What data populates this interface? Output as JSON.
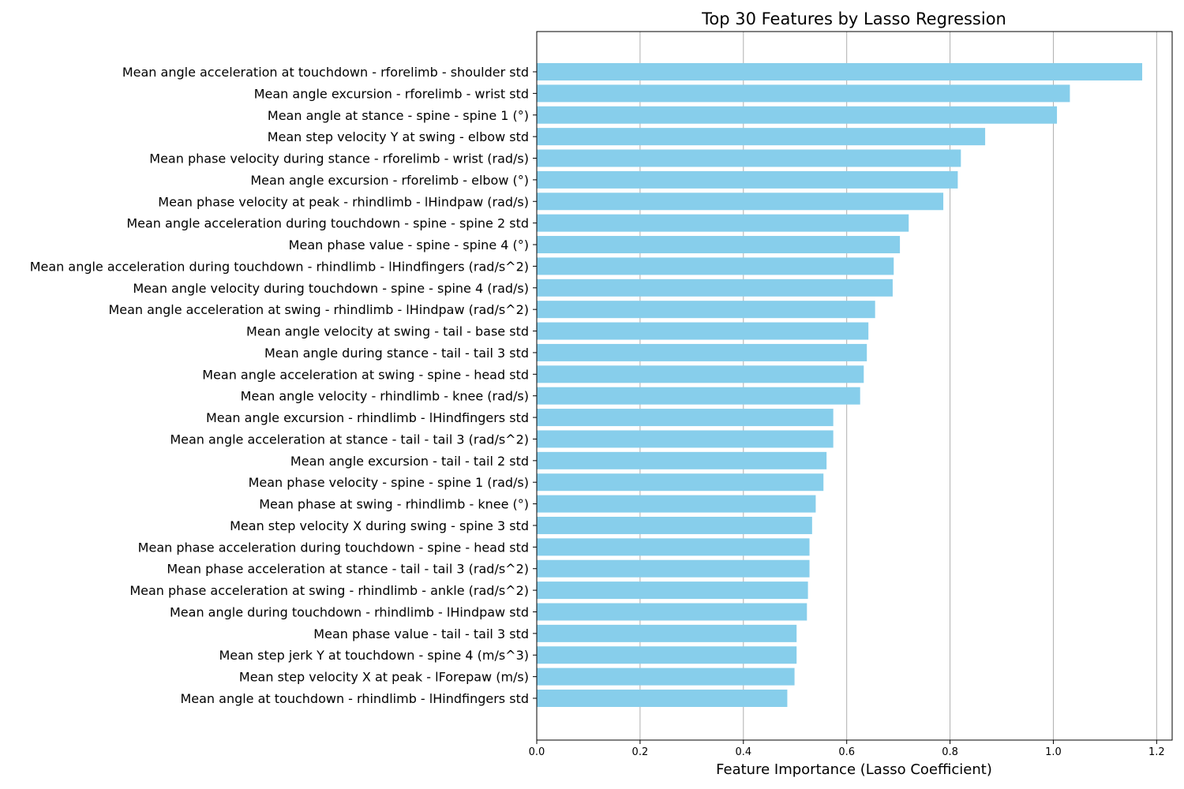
{
  "chart_data": {
    "type": "bar",
    "orientation": "horizontal",
    "title": "Top 30 Features by Lasso Regression",
    "xlabel": "Feature Importance (Lasso Coefficient)",
    "ylabel": "",
    "xlim": [
      0,
      1.23
    ],
    "xticks": [
      0.0,
      0.2,
      0.4,
      0.6,
      0.8,
      1.0,
      1.2
    ],
    "xtick_labels": [
      "0.0",
      "0.2",
      "0.4",
      "0.6",
      "0.8",
      "1.0",
      "1.2"
    ],
    "grid": "x",
    "bar_color": "#87ceeb",
    "categories": [
      "Mean angle acceleration at touchdown - rforelimb - shoulder std",
      "Mean angle excursion - rforelimb - wrist std",
      "Mean angle at stance - spine - spine 1 (°)",
      "Mean step velocity Y at swing - elbow std",
      "Mean phase velocity during stance - rforelimb - wrist (rad/s)",
      "Mean angle excursion - rforelimb - elbow (°)",
      "Mean phase velocity at peak - rhindlimb - lHindpaw (rad/s)",
      "Mean angle acceleration during touchdown - spine - spine 2 std",
      "Mean phase value - spine - spine 4 (°)",
      "Mean angle acceleration during touchdown - rhindlimb - lHindfingers (rad/s^2)",
      "Mean angle velocity during touchdown - spine - spine 4 (rad/s)",
      "Mean angle acceleration at swing - rhindlimb - lHindpaw (rad/s^2)",
      "Mean angle velocity at swing - tail - base std",
      "Mean angle during stance - tail - tail 3 std",
      "Mean angle acceleration at swing - spine - head std",
      "Mean angle velocity - rhindlimb - knee (rad/s)",
      "Mean angle excursion - rhindlimb - lHindfingers std",
      "Mean angle acceleration at stance - tail - tail 3 (rad/s^2)",
      "Mean angle excursion - tail - tail 2 std",
      "Mean phase velocity - spine - spine 1 (rad/s)",
      "Mean phase at swing - rhindlimb - knee (°)",
      "Mean step velocity X during swing - spine 3 std",
      "Mean phase acceleration during touchdown - spine - head std",
      "Mean phase acceleration at stance - tail - tail 3 (rad/s^2)",
      "Mean phase acceleration at swing - rhindlimb - ankle (rad/s^2)",
      "Mean angle during touchdown - rhindlimb - lHindpaw std",
      "Mean phase value - tail - tail 3 std",
      "Mean step jerk Y at touchdown - spine 4 (m/s^3)",
      "Mean step velocity X at peak - lForepaw (m/s)",
      "Mean angle at touchdown - rhindlimb - lHindfingers std"
    ],
    "values": [
      1.172,
      1.032,
      1.007,
      0.868,
      0.821,
      0.815,
      0.787,
      0.72,
      0.703,
      0.691,
      0.689,
      0.655,
      0.642,
      0.639,
      0.633,
      0.626,
      0.574,
      0.574,
      0.561,
      0.555,
      0.54,
      0.533,
      0.528,
      0.528,
      0.525,
      0.523,
      0.503,
      0.503,
      0.499,
      0.485
    ]
  }
}
